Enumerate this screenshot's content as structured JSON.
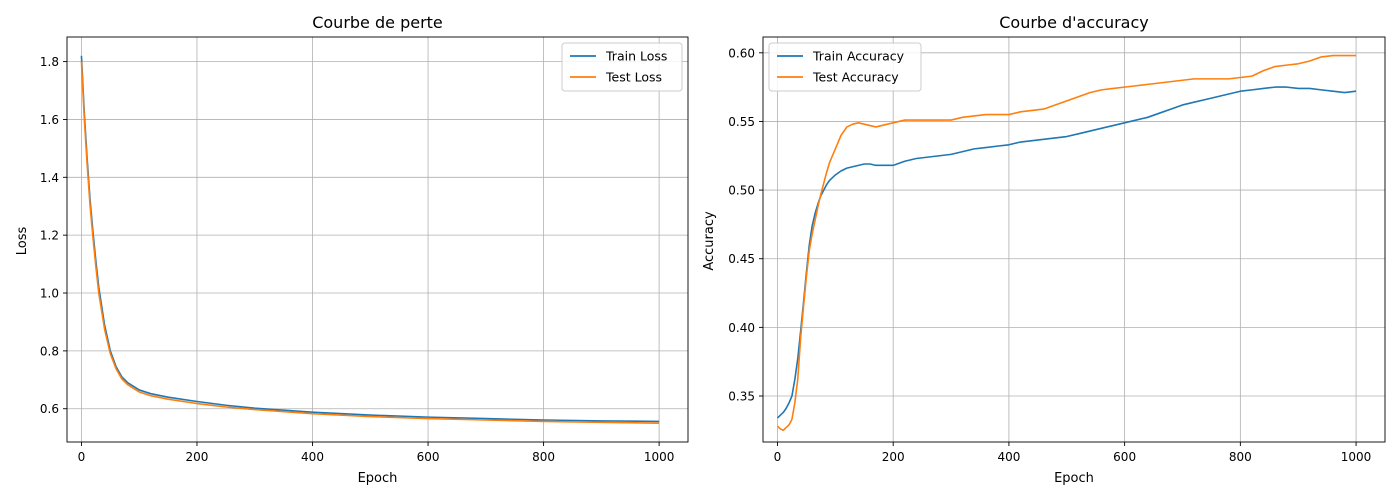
{
  "colors": {
    "train": "#1f77b4",
    "test": "#ff7f0e",
    "grid": "#b0b0b0"
  },
  "chart_data": [
    {
      "type": "line",
      "title": "Courbe de perte",
      "xlabel": "Epoch",
      "ylabel": "Loss",
      "xlim": [
        -25,
        1050
      ],
      "ylim": [
        0.485,
        1.885
      ],
      "xticks": [
        "0",
        "200",
        "400",
        "600",
        "800",
        "1000"
      ],
      "xtick_values": [
        0,
        200,
        400,
        600,
        800,
        1000
      ],
      "yticks": [
        "0.6",
        "0.8",
        "1.0",
        "1.2",
        "1.4",
        "1.6",
        "1.8"
      ],
      "ytick_values": [
        0.6,
        0.8,
        1.0,
        1.2,
        1.4,
        1.6,
        1.8
      ],
      "grid": true,
      "legend_position": "upper right",
      "series": [
        {
          "name": "Train Loss",
          "color": "#1f77b4",
          "x": [
            0,
            5,
            10,
            15,
            20,
            25,
            30,
            40,
            50,
            60,
            70,
            80,
            100,
            120,
            150,
            200,
            250,
            300,
            400,
            500,
            600,
            700,
            800,
            900,
            1000
          ],
          "y": [
            1.82,
            1.62,
            1.46,
            1.32,
            1.21,
            1.11,
            1.02,
            0.89,
            0.8,
            0.745,
            0.71,
            0.69,
            0.665,
            0.652,
            0.64,
            0.625,
            0.612,
            0.602,
            0.588,
            0.578,
            0.571,
            0.566,
            0.561,
            0.558,
            0.556
          ]
        },
        {
          "name": "Test Loss",
          "color": "#ff7f0e",
          "x": [
            0,
            5,
            10,
            15,
            20,
            25,
            30,
            40,
            50,
            60,
            70,
            80,
            100,
            120,
            150,
            200,
            250,
            300,
            400,
            500,
            600,
            700,
            800,
            900,
            1000
          ],
          "y": [
            1.8,
            1.6,
            1.44,
            1.3,
            1.19,
            1.09,
            1.0,
            0.875,
            0.79,
            0.738,
            0.703,
            0.683,
            0.658,
            0.645,
            0.633,
            0.618,
            0.606,
            0.597,
            0.583,
            0.573,
            0.566,
            0.561,
            0.556,
            0.553,
            0.55
          ]
        }
      ]
    },
    {
      "type": "line",
      "title": "Courbe d'accuracy",
      "xlabel": "Epoch",
      "ylabel": "Accuracy",
      "xlim": [
        -25,
        1050
      ],
      "ylim": [
        0.3165,
        0.6115
      ],
      "xticks": [
        "0",
        "200",
        "400",
        "600",
        "800",
        "1000"
      ],
      "xtick_values": [
        0,
        200,
        400,
        600,
        800,
        1000
      ],
      "yticks": [
        "0.35",
        "0.40",
        "0.45",
        "0.50",
        "0.55",
        "0.60"
      ],
      "ytick_values": [
        0.35,
        0.4,
        0.45,
        0.5,
        0.55,
        0.6
      ],
      "grid": true,
      "legend_position": "upper left",
      "series": [
        {
          "name": "Train Accuracy",
          "color": "#1f77b4",
          "x": [
            0,
            5,
            10,
            15,
            20,
            25,
            30,
            35,
            40,
            45,
            50,
            55,
            60,
            65,
            70,
            75,
            80,
            85,
            90,
            95,
            100,
            110,
            120,
            130,
            140,
            150,
            160,
            170,
            180,
            190,
            200,
            220,
            240,
            260,
            280,
            300,
            320,
            340,
            360,
            380,
            400,
            420,
            440,
            460,
            480,
            500,
            520,
            540,
            560,
            580,
            600,
            620,
            640,
            660,
            680,
            700,
            720,
            740,
            760,
            780,
            800,
            820,
            840,
            860,
            880,
            900,
            920,
            940,
            960,
            980,
            1000
          ],
          "y": [
            0.334,
            0.336,
            0.338,
            0.341,
            0.345,
            0.35,
            0.362,
            0.377,
            0.397,
            0.418,
            0.44,
            0.46,
            0.474,
            0.483,
            0.49,
            0.496,
            0.5,
            0.504,
            0.507,
            0.509,
            0.511,
            0.514,
            0.516,
            0.517,
            0.518,
            0.519,
            0.519,
            0.518,
            0.518,
            0.518,
            0.518,
            0.521,
            0.523,
            0.524,
            0.525,
            0.526,
            0.528,
            0.53,
            0.531,
            0.532,
            0.533,
            0.535,
            0.536,
            0.537,
            0.538,
            0.539,
            0.541,
            0.543,
            0.545,
            0.547,
            0.549,
            0.551,
            0.553,
            0.556,
            0.559,
            0.562,
            0.564,
            0.566,
            0.568,
            0.57,
            0.572,
            0.573,
            0.574,
            0.575,
            0.575,
            0.574,
            0.574,
            0.573,
            0.572,
            0.571,
            0.572
          ]
        },
        {
          "name": "Test Accuracy",
          "color": "#ff7f0e",
          "x": [
            0,
            5,
            10,
            15,
            20,
            25,
            30,
            35,
            40,
            45,
            50,
            55,
            60,
            65,
            70,
            75,
            80,
            85,
            90,
            95,
            100,
            110,
            120,
            130,
            140,
            150,
            160,
            170,
            180,
            190,
            200,
            220,
            240,
            260,
            280,
            300,
            320,
            340,
            360,
            380,
            400,
            420,
            440,
            460,
            480,
            500,
            520,
            540,
            560,
            580,
            600,
            620,
            640,
            660,
            680,
            700,
            720,
            740,
            760,
            780,
            800,
            820,
            840,
            860,
            880,
            900,
            920,
            940,
            960,
            980,
            1000
          ],
          "y": [
            0.328,
            0.326,
            0.325,
            0.327,
            0.329,
            0.333,
            0.345,
            0.362,
            0.392,
            0.415,
            0.437,
            0.456,
            0.468,
            0.478,
            0.488,
            0.497,
            0.505,
            0.513,
            0.52,
            0.525,
            0.53,
            0.54,
            0.546,
            0.548,
            0.549,
            0.548,
            0.547,
            0.546,
            0.547,
            0.548,
            0.549,
            0.551,
            0.551,
            0.551,
            0.551,
            0.551,
            0.553,
            0.554,
            0.555,
            0.555,
            0.555,
            0.557,
            0.558,
            0.559,
            0.562,
            0.565,
            0.568,
            0.571,
            0.573,
            0.574,
            0.575,
            0.576,
            0.577,
            0.578,
            0.579,
            0.58,
            0.581,
            0.581,
            0.581,
            0.581,
            0.582,
            0.583,
            0.587,
            0.59,
            0.591,
            0.592,
            0.594,
            0.597,
            0.598,
            0.598,
            0.598
          ]
        }
      ]
    }
  ]
}
